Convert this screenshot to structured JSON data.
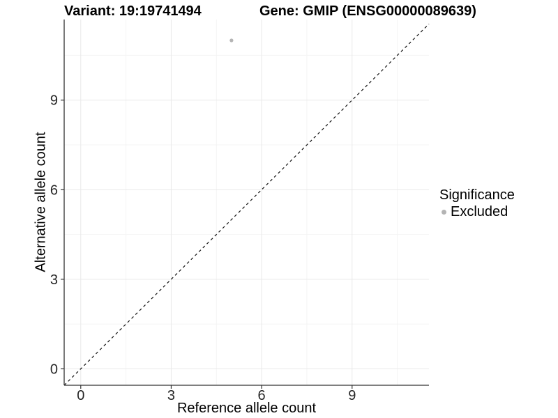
{
  "titles": {
    "variant": "Variant: 19:19741494",
    "gene": "Gene: GMIP (ENSG00000089639)"
  },
  "chart_data": {
    "type": "scatter",
    "xlabel": "Reference allele count",
    "ylabel": "Alternative allele count",
    "xlim": [
      -0.55,
      11.55
    ],
    "ylim": [
      -0.55,
      11.7
    ],
    "x_ticks": [
      0,
      3,
      6,
      9
    ],
    "y_ticks": [
      0,
      3,
      6,
      9
    ],
    "x_minor_ticks": [
      1.5,
      4.5,
      7.5,
      10.5
    ],
    "y_minor_ticks": [
      1.5,
      4.5,
      7.5,
      10.5
    ],
    "grid": true,
    "points": [
      {
        "x": 5,
        "y": 11,
        "series": "Excluded"
      }
    ],
    "reference_line": {
      "type": "identity",
      "style": "dashed",
      "x1": -0.55,
      "y1": -0.55,
      "x2": 11.55,
      "y2": 11.55
    },
    "legend": {
      "title": "Significance",
      "position": "right",
      "items": [
        {
          "label": "Excluded",
          "color": "#b4b4b4"
        }
      ]
    },
    "colors": {
      "point": "#b4b4b4",
      "grid_major": "#e9e9e9",
      "grid_minor": "#f4f4f4",
      "axis_line": "#333333",
      "tick_mark": "#333333",
      "tick_label": "#262626",
      "dashed_line": "#111111",
      "background": "#ffffff"
    }
  }
}
